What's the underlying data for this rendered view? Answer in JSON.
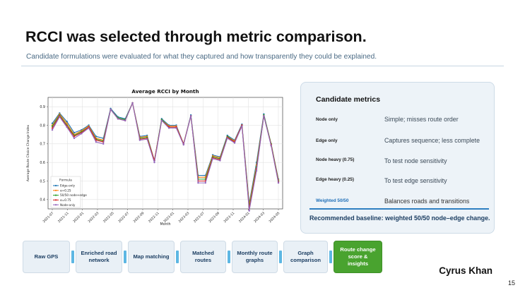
{
  "slide": {
    "title": "RCCI was selected through metric comparison.",
    "subtitle": "Candidate formulations were evaluated for what they captured and how transparently they could be explained.",
    "author": "Cyrus Khan",
    "page_number": "15"
  },
  "metrics_panel": {
    "heading": "Candidate metrics",
    "rows": [
      {
        "name": "Node only",
        "description": "Simple; misses route order"
      },
      {
        "name": "Edge only",
        "description": "Captures sequence; less complete"
      },
      {
        "name": "Node heavy (0.75)",
        "description": "To test node sensitivity"
      },
      {
        "name": "Edge heavy (0.25)",
        "description": "To test edge sensitivity"
      },
      {
        "name": "Weighted 50/50",
        "description": "Balances roads and transitions"
      }
    ],
    "recommendation": "Recommended baseline: weighted 50/50 node–edge change."
  },
  "pipeline": {
    "steps": [
      {
        "label": "Raw GPS"
      },
      {
        "label": "Enriched road network"
      },
      {
        "label": "Map matching"
      },
      {
        "label": "Matched routes"
      },
      {
        "label": "Monthly route graphs"
      },
      {
        "label": "Graph comparison"
      },
      {
        "label": "Route change score & insights"
      }
    ]
  },
  "chart_data": {
    "type": "line",
    "title": "Average RCCI by Month",
    "xlabel": "Month",
    "ylabel": "Average Route Choice Change Index",
    "ylim": [
      0.35,
      0.95
    ],
    "yticks": [
      0.4,
      0.5,
      0.6,
      0.7,
      0.8,
      0.9
    ],
    "yticklabels": [
      "0.4",
      "0.5",
      "0.6",
      "0.7",
      "0.8",
      "0.9"
    ],
    "xticklabels": [
      "2021-07",
      "2021-11",
      "2022-01",
      "2022-03",
      "2022-05",
      "2022-07",
      "2022-09",
      "2022-11",
      "2023-01",
      "2023-03",
      "2023-07",
      "2023-09",
      "2023-11",
      "2024-01",
      "2024-03",
      "2024-05"
    ],
    "grid": true,
    "legend": {
      "title": "Formula",
      "placement": "lower-left"
    },
    "colors": [
      "#1f77b4",
      "#ff7f0e",
      "#2ca02c",
      "#d62728",
      "#9467bd"
    ],
    "series": [
      {
        "name": "Edge-only",
        "values": [
          0.81,
          0.865,
          0.82,
          0.76,
          0.775,
          0.8,
          0.74,
          0.73,
          0.89,
          0.845,
          0.835,
          0.92,
          0.74,
          0.745,
          0.61,
          0.835,
          0.8,
          0.8,
          0.7,
          0.855,
          0.53,
          0.53,
          0.64,
          0.63,
          0.745,
          0.72,
          0.805,
          0.38,
          0.6,
          0.86,
          0.7,
          0.51
        ]
      },
      {
        "name": "α=0.25",
        "values": [
          0.8,
          0.86,
          0.81,
          0.75,
          0.77,
          0.795,
          0.73,
          0.72,
          0.885,
          0.84,
          0.83,
          0.92,
          0.735,
          0.74,
          0.61,
          0.83,
          0.795,
          0.795,
          0.7,
          0.85,
          0.52,
          0.52,
          0.635,
          0.625,
          0.74,
          0.715,
          0.8,
          0.37,
          0.585,
          0.855,
          0.7,
          0.505
        ]
      },
      {
        "name": "50/50 node+edge",
        "values": [
          0.795,
          0.855,
          0.8,
          0.745,
          0.765,
          0.79,
          0.725,
          0.715,
          0.885,
          0.84,
          0.83,
          0.92,
          0.73,
          0.735,
          0.61,
          0.83,
          0.79,
          0.79,
          0.7,
          0.85,
          0.51,
          0.51,
          0.63,
          0.62,
          0.74,
          0.71,
          0.8,
          0.36,
          0.575,
          0.855,
          0.7,
          0.5
        ]
      },
      {
        "name": "α=0.75",
        "values": [
          0.785,
          0.85,
          0.795,
          0.74,
          0.76,
          0.79,
          0.72,
          0.71,
          0.885,
          0.835,
          0.825,
          0.92,
          0.725,
          0.73,
          0.61,
          0.825,
          0.79,
          0.79,
          0.7,
          0.85,
          0.5,
          0.5,
          0.625,
          0.615,
          0.735,
          0.71,
          0.8,
          0.35,
          0.565,
          0.85,
          0.695,
          0.495
        ]
      },
      {
        "name": "Node-only",
        "values": [
          0.775,
          0.845,
          0.79,
          0.73,
          0.755,
          0.785,
          0.71,
          0.7,
          0.885,
          0.835,
          0.825,
          0.92,
          0.72,
          0.725,
          0.6,
          0.825,
          0.785,
          0.785,
          0.695,
          0.85,
          0.49,
          0.49,
          0.62,
          0.61,
          0.73,
          0.705,
          0.795,
          0.34,
          0.555,
          0.85,
          0.69,
          0.49
        ]
      }
    ]
  }
}
